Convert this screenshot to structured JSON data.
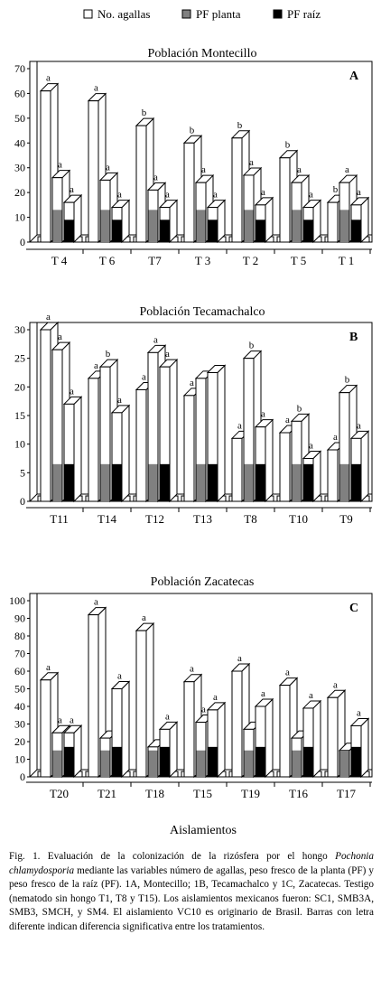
{
  "legend": [
    {
      "label": "No. agallas",
      "color": "#ffffff"
    },
    {
      "label": "PF planta",
      "color": "#808080"
    },
    {
      "label": "PF raíz",
      "color": "#000000"
    }
  ],
  "xlabel": "Aislamientos",
  "caption": {
    "lead": "Fig. 1. Evaluación de la colonización de la rizósfera por el hongo ",
    "species": "Pochonia chlamydosporia",
    "rest": " mediante las variables número de agallas, peso fresco de la planta (PF) y peso fresco de la raíz (PF). 1A, Montecillo; 1B, Tecamachalco y 1C, Zacatecas. Testigo (nematodo sin hongo T1, T8 y T15). Los aislamientos mexicanos fueron: SC1, SMB3A, SMB3, SMCH, y SM4. El aislamiento VC10 es originario de Brasil. Barras con letra diferente indican diferencia significativa entre los tratamientos."
  },
  "chart_data": [
    {
      "type": "bar",
      "title": "Población Montecillo",
      "panel_label": "A",
      "categories": [
        "T 4",
        "T 6",
        "T7",
        "T 3",
        "T 2",
        "T 5",
        "T 1"
      ],
      "ylim": [
        0,
        70
      ],
      "yticks": [
        0,
        10,
        20,
        30,
        40,
        50,
        60,
        70
      ],
      "series": [
        {
          "name": "No. agallas",
          "values": [
            61,
            57,
            47,
            40,
            42,
            34,
            16
          ],
          "letters": [
            "a",
            "a",
            "b",
            "b",
            "b",
            "b",
            "b"
          ]
        },
        {
          "name": "PF planta",
          "values": [
            13,
            13,
            13,
            13,
            13,
            13,
            13
          ],
          "visible_height": [
            26,
            25,
            21,
            24,
            27,
            24,
            24
          ],
          "letters": [
            "a",
            "a",
            "a",
            "a",
            "a",
            "a",
            "a"
          ]
        },
        {
          "name": "PF raíz",
          "values": [
            9,
            9,
            9,
            9,
            9,
            9,
            9
          ],
          "visible_height": [
            16,
            14,
            14,
            14,
            15,
            14,
            15
          ],
          "letters": [
            "a",
            "a",
            "a",
            "a",
            "a",
            "a",
            "a"
          ]
        }
      ]
    },
    {
      "type": "bar",
      "title": "Población Tecamachalco",
      "panel_label": "B",
      "categories": [
        "T11",
        "T14",
        "T12",
        "T13",
        "T8",
        "T10",
        "T9"
      ],
      "ylim": [
        0,
        30
      ],
      "yticks": [
        0,
        5,
        10,
        15,
        20,
        25,
        30
      ],
      "series": [
        {
          "name": "No. agallas",
          "values": [
            30,
            21.5,
            19.5,
            18.5,
            11,
            12,
            9
          ],
          "letters": [
            "a",
            "a",
            "a",
            "a",
            "a",
            "a",
            "a"
          ]
        },
        {
          "name": "PF planta",
          "values": [
            6.5,
            6.5,
            6.5,
            6.5,
            6.5,
            6.5,
            6.5
          ],
          "visible_height": [
            26.5,
            23.5,
            26,
            21.5,
            25,
            14,
            19
          ],
          "letters": [
            "a",
            "b",
            "a",
            "",
            "b",
            "b",
            "b"
          ]
        },
        {
          "name": "PF raíz",
          "values": [
            6.5,
            6.5,
            6.5,
            6.5,
            6.5,
            6.5,
            6.5
          ],
          "visible_height": [
            17,
            15.5,
            23.5,
            22.5,
            13,
            7.5,
            11
          ],
          "letters": [
            "a",
            "a",
            "a",
            "",
            "a",
            "a",
            "a"
          ]
        }
      ]
    },
    {
      "type": "bar",
      "title": "Población Zacatecas",
      "panel_label": "C",
      "categories": [
        "T20",
        "T21",
        "T18",
        "T15",
        "T19",
        "T16",
        "T17"
      ],
      "ylim": [
        0,
        100
      ],
      "yticks": [
        0,
        10,
        20,
        30,
        40,
        50,
        60,
        70,
        80,
        90,
        100
      ],
      "series": [
        {
          "name": "No. agallas",
          "values": [
            55,
            92,
            83,
            54,
            60,
            52,
            45
          ],
          "letters": [
            "a",
            "a",
            "a",
            "a",
            "a",
            "a",
            "a"
          ]
        },
        {
          "name": "PF planta",
          "values": [
            15,
            15,
            15,
            15,
            15,
            15,
            15
          ],
          "visible_height": [
            25,
            22,
            17,
            31,
            27,
            22,
            15
          ],
          "letters": [
            "a",
            "",
            "",
            "a",
            "",
            "",
            ""
          ]
        },
        {
          "name": "PF raíz",
          "values": [
            17,
            17,
            17,
            17,
            17,
            17,
            17
          ],
          "visible_height": [
            25,
            50,
            27,
            38,
            40,
            39,
            29
          ],
          "letters": [
            "a",
            "a",
            "a",
            "a",
            "a",
            "a",
            "a"
          ]
        }
      ]
    }
  ]
}
